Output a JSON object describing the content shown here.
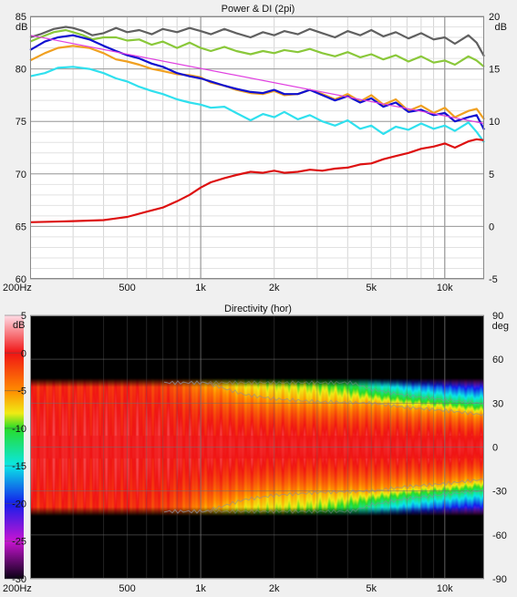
{
  "chart_data": [
    {
      "type": "line",
      "title": "Power & DI (2pi)",
      "xscale": "log",
      "xlim": [
        200,
        14500
      ],
      "xticklabels": [
        {
          "value": 200,
          "label": "200Hz"
        },
        {
          "value": 500,
          "label": "500"
        },
        {
          "value": 1000,
          "label": "1k"
        },
        {
          "value": 2000,
          "label": "2k"
        },
        {
          "value": 5000,
          "label": "5k"
        },
        {
          "value": 10000,
          "label": "10k"
        }
      ],
      "ylim_left": [
        60,
        85
      ],
      "ylabel_left_unit": "dB",
      "yticks_left": [
        60,
        65,
        70,
        75,
        80,
        85
      ],
      "ylim_right": [
        -5,
        20
      ],
      "ylabel_right_unit": "dB",
      "yticks_right": [
        -5,
        0,
        5,
        10,
        15,
        20
      ],
      "grid": true,
      "series": [
        {
          "color": "#606060",
          "axis": "left",
          "width": 2.2,
          "x": [
            200,
            220,
            250,
            280,
            300,
            330,
            360,
            400,
            450,
            500,
            560,
            630,
            700,
            800,
            900,
            1000,
            1100,
            1250,
            1400,
            1600,
            1800,
            2000,
            2200,
            2500,
            2800,
            3150,
            3550,
            4000,
            4500,
            5000,
            5600,
            6300,
            7100,
            8000,
            9000,
            10000,
            11000,
            12500,
            13500,
            14500
          ],
          "y": [
            83.0,
            83.3,
            83.8,
            84.0,
            83.9,
            83.6,
            83.2,
            83.4,
            83.9,
            83.5,
            83.7,
            83.3,
            83.8,
            83.5,
            83.9,
            83.6,
            83.3,
            83.8,
            83.4,
            83.0,
            83.5,
            83.2,
            83.6,
            83.3,
            83.8,
            83.4,
            83.0,
            83.6,
            83.2,
            83.7,
            83.1,
            83.5,
            82.9,
            83.4,
            82.8,
            83.0,
            82.4,
            83.2,
            82.5,
            81.2
          ]
        },
        {
          "color": "#8ac83a",
          "axis": "left",
          "width": 2.2,
          "x": [
            200,
            220,
            250,
            280,
            300,
            330,
            360,
            400,
            450,
            500,
            560,
            630,
            700,
            800,
            900,
            1000,
            1100,
            1250,
            1400,
            1600,
            1800,
            2000,
            2200,
            2500,
            2800,
            3150,
            3550,
            4000,
            4500,
            5000,
            5600,
            6300,
            7100,
            8000,
            9000,
            10000,
            11000,
            12500,
            13500,
            14500
          ],
          "y": [
            82.6,
            83.0,
            83.5,
            83.7,
            83.5,
            83.2,
            82.8,
            83.0,
            83.0,
            82.7,
            82.8,
            82.3,
            82.6,
            82.0,
            82.5,
            82.0,
            81.7,
            82.1,
            81.7,
            81.4,
            81.7,
            81.5,
            81.8,
            81.6,
            81.9,
            81.5,
            81.2,
            81.6,
            81.1,
            81.4,
            80.9,
            81.3,
            80.7,
            81.2,
            80.6,
            80.8,
            80.4,
            81.2,
            80.8,
            80.2
          ]
        },
        {
          "color": "#f0a020",
          "axis": "left",
          "width": 2.2,
          "x": [
            200,
            230,
            260,
            300,
            350,
            400,
            450,
            500,
            560,
            630,
            700,
            800,
            900,
            1000,
            1100,
            1250,
            1400,
            1600,
            1800,
            2000,
            2200,
            2500,
            2800,
            3150,
            3550,
            4000,
            4500,
            5000,
            5600,
            6300,
            7100,
            8000,
            9000,
            10000,
            11000,
            12500,
            13500,
            14500
          ],
          "y": [
            80.8,
            81.5,
            82.0,
            82.2,
            82.0,
            81.5,
            80.9,
            80.7,
            80.4,
            80.0,
            79.8,
            79.5,
            79.4,
            79.2,
            78.7,
            78.4,
            78.0,
            77.7,
            77.6,
            77.9,
            77.5,
            77.6,
            78.0,
            77.6,
            77.1,
            77.6,
            76.9,
            77.5,
            76.6,
            77.1,
            76.0,
            76.5,
            75.8,
            76.3,
            75.4,
            76.0,
            76.2,
            75.2
          ]
        },
        {
          "color": "#1010d0",
          "axis": "left",
          "width": 2.2,
          "x": [
            200,
            230,
            260,
            300,
            350,
            400,
            450,
            500,
            560,
            630,
            700,
            800,
            900,
            1000,
            1100,
            1250,
            1400,
            1600,
            1800,
            2000,
            2200,
            2500,
            2800,
            3150,
            3550,
            4000,
            4500,
            5000,
            5600,
            6300,
            7100,
            8000,
            9000,
            10000,
            11000,
            12500,
            13500,
            14500
          ],
          "y": [
            81.8,
            82.6,
            83.0,
            83.2,
            82.8,
            82.2,
            81.7,
            81.3,
            81.0,
            80.5,
            80.2,
            79.6,
            79.3,
            79.1,
            78.8,
            78.4,
            78.1,
            77.8,
            77.7,
            78.0,
            77.6,
            77.6,
            78.0,
            77.5,
            77.0,
            77.4,
            76.8,
            77.2,
            76.4,
            76.8,
            75.9,
            76.1,
            75.6,
            75.8,
            75.0,
            75.4,
            75.6,
            74.2
          ]
        },
        {
          "color": "#e040e0",
          "axis": "left",
          "width": 1.2,
          "x": [
            200,
            14500
          ],
          "y": [
            83.2,
            74.8
          ]
        },
        {
          "color": "#30e0ee",
          "axis": "left",
          "width": 2.2,
          "x": [
            200,
            230,
            260,
            300,
            350,
            400,
            450,
            500,
            560,
            630,
            700,
            800,
            900,
            1000,
            1100,
            1250,
            1400,
            1600,
            1800,
            2000,
            2200,
            2500,
            2800,
            3150,
            3550,
            4000,
            4500,
            5000,
            5600,
            6300,
            7100,
            8000,
            9000,
            10000,
            11000,
            12500,
            13500,
            14500
          ],
          "y": [
            79.3,
            79.6,
            80.1,
            80.2,
            80.0,
            79.6,
            79.1,
            78.8,
            78.3,
            77.9,
            77.6,
            77.1,
            76.8,
            76.6,
            76.3,
            76.4,
            75.8,
            75.1,
            75.7,
            75.4,
            75.9,
            75.2,
            75.6,
            75.0,
            74.6,
            75.1,
            74.3,
            74.6,
            73.8,
            74.5,
            74.2,
            74.8,
            74.3,
            74.6,
            74.1,
            74.9,
            74.0,
            73.0
          ]
        },
        {
          "color": "#dd1010",
          "axis": "right",
          "width": 2.2,
          "x": [
            200,
            250,
            300,
            400,
            500,
            600,
            700,
            800,
            900,
            1000,
            1100,
            1250,
            1400,
            1600,
            1800,
            2000,
            2200,
            2500,
            2800,
            3150,
            3550,
            4000,
            4500,
            5000,
            5600,
            6300,
            7100,
            8000,
            9000,
            10000,
            11000,
            12500,
            13500,
            14500
          ],
          "y": [
            0.4,
            0.45,
            0.5,
            0.6,
            0.9,
            1.4,
            1.8,
            2.4,
            3.0,
            3.7,
            4.2,
            4.6,
            4.9,
            5.2,
            5.1,
            5.3,
            5.1,
            5.2,
            5.4,
            5.3,
            5.5,
            5.6,
            5.9,
            6.0,
            6.4,
            6.7,
            7.0,
            7.4,
            7.6,
            7.9,
            7.5,
            8.1,
            8.3,
            8.2
          ]
        }
      ]
    },
    {
      "type": "heatmap",
      "title": "Directivity (hor)",
      "xscale": "log",
      "xlim": [
        200,
        14500
      ],
      "xticklabels": [
        {
          "value": 200,
          "label": "200Hz"
        },
        {
          "value": 500,
          "label": "500"
        },
        {
          "value": 1000,
          "label": "1k"
        },
        {
          "value": 2000,
          "label": "2k"
        },
        {
          "value": 5000,
          "label": "5k"
        },
        {
          "value": 10000,
          "label": "10k"
        }
      ],
      "ylim": [
        -90,
        90
      ],
      "ylabel_unit": "deg",
      "yticks": [
        -90,
        -60,
        -30,
        0,
        30,
        60,
        90
      ],
      "colorbar": {
        "unit": "dB",
        "range": [
          -30,
          5
        ],
        "ticks": [
          -30,
          -25,
          -20,
          -15,
          -10,
          -5,
          0,
          5
        ]
      },
      "angle_limit": 45,
      "beamwidth_profile": {
        "freq": [
          200,
          500,
          800,
          1000,
          1500,
          2000,
          3000,
          5000,
          7000,
          10000,
          14500
        ],
        "minus6db_angle": [
          90,
          90,
          60,
          45,
          36,
          33,
          31,
          30,
          27,
          25,
          22
        ],
        "minus20db_angle": [
          90,
          90,
          90,
          90,
          90,
          90,
          80,
          52,
          46,
          42,
          40
        ]
      }
    }
  ]
}
